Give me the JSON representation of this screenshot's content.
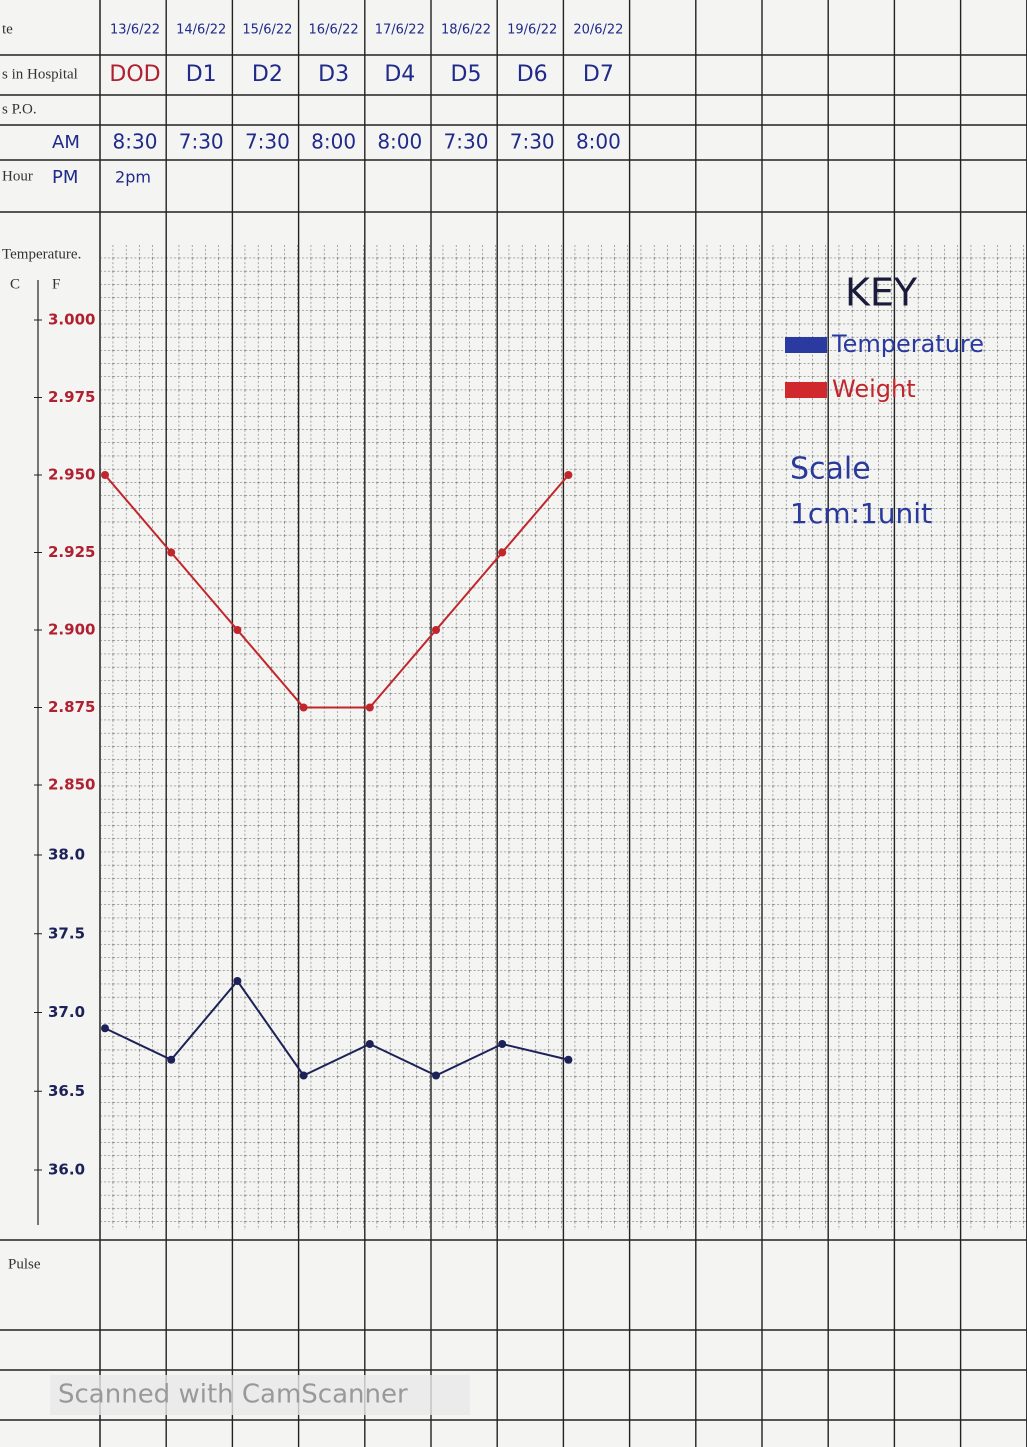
{
  "table": {
    "row_labels": [
      "te",
      "s in Hospital",
      "s P.O.",
      "Hour"
    ],
    "hour_labels": [
      "AM",
      "PM"
    ],
    "days": [
      "DOD",
      "D1",
      "D2",
      "D3",
      "D4",
      "D5",
      "D6",
      "D7"
    ],
    "am": [
      "8:30",
      "7:30",
      "7:30",
      "8:00",
      "8:00",
      "7:30",
      "7:30",
      "8:00"
    ],
    "pm": [
      "2pm"
    ]
  },
  "axis_labels": {
    "title": "Temperature.",
    "left": "C",
    "right": "F",
    "pulse": "Pulse"
  },
  "key": {
    "title": "KEY",
    "scale_title": "Scale",
    "scale": "1cm:1unit"
  },
  "watermark": "Scanned with CamScanner",
  "chart_data": [
    {
      "type": "line",
      "categories": [
        "13/6/22",
        "14/6/22",
        "15/6/22",
        "16/6/22",
        "17/6/22",
        "18/6/22",
        "19/6/22",
        "20/6/22"
      ],
      "series": [
        {
          "name": "Weight",
          "color": "#c0262c",
          "values": [
            2.95,
            2.925,
            2.9,
            2.875,
            2.875,
            2.9,
            2.925,
            2.95
          ]
        }
      ],
      "ylim": [
        2.85,
        3.0
      ],
      "yticks": [
        {
          "value": 3,
          "label": "3.000"
        },
        2.975,
        {
          "value": 2.95,
          "label": "2.950"
        },
        2.925,
        {
          "value": 2.9,
          "label": "2.900"
        },
        2.875,
        {
          "value": 2.85,
          "label": "2.850"
        }
      ]
    },
    {
      "type": "line",
      "series": [
        {
          "name": "Temperature",
          "color": "#1c2257",
          "values": [
            36.9,
            36.7,
            37.2,
            36.6,
            36.8,
            36.6,
            36.8,
            36.7
          ]
        }
      ],
      "ylim": [
        36,
        38
      ],
      "yticks": [
        {
          "value": 38,
          "label": "38.0"
        },
        37.5,
        {
          "value": 37,
          "label": "37.0"
        },
        36.5,
        {
          "value": 36,
          "label": "36.0"
        }
      ]
    }
  ]
}
